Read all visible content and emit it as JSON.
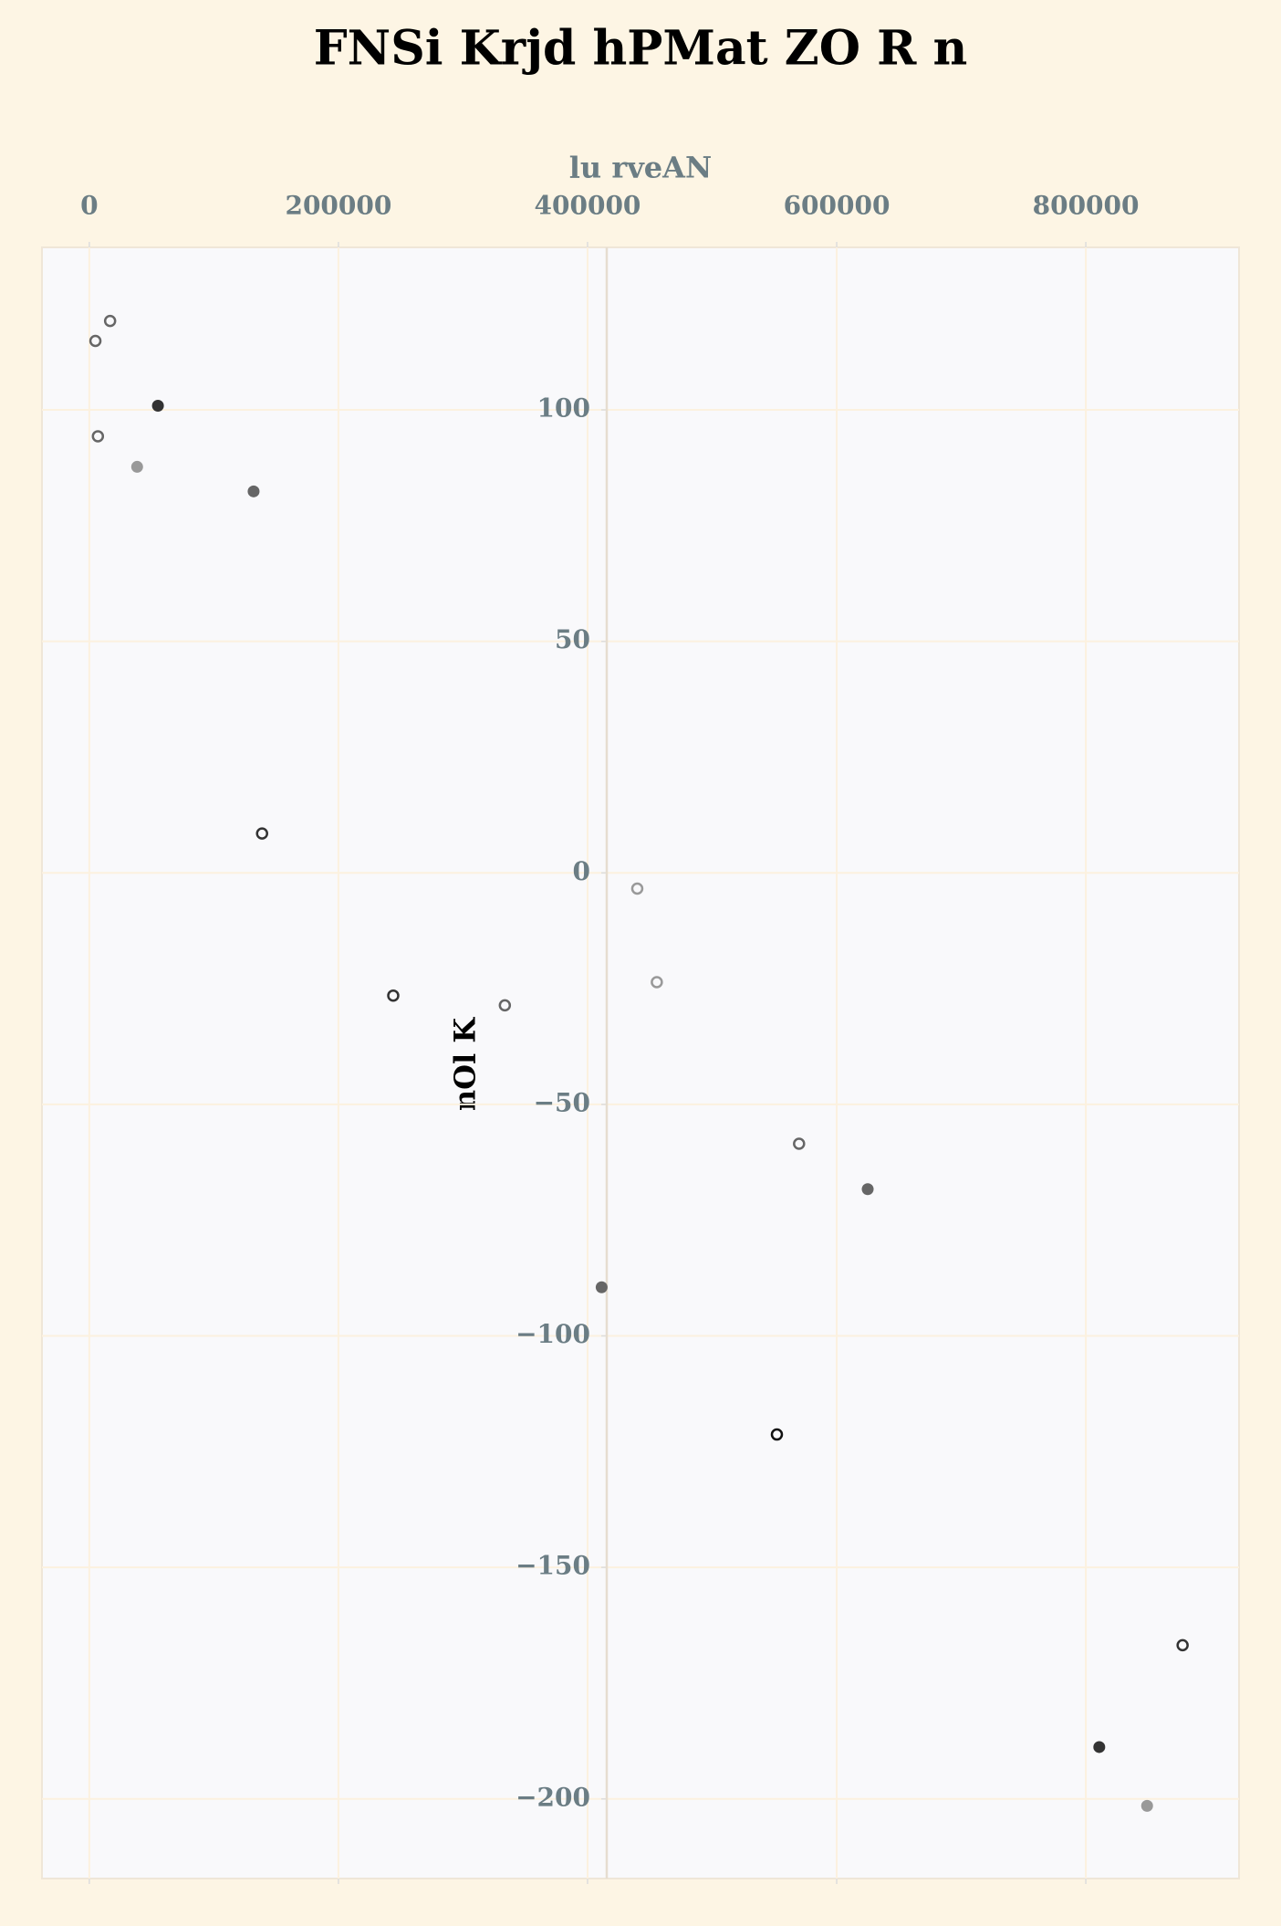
{
  "chart_data": {
    "type": "scatter",
    "title": "FNSi Krjd hPMat ZO R n",
    "x_label": "lu rveAN",
    "y_label": "nOl K",
    "x": [
      16700,
      4900,
      55100,
      6900,
      38400,
      131900,
      138700,
      244000,
      333600,
      439900,
      455600,
      569800,
      624900,
      411300,
      552000,
      877700,
      810800,
      849200
    ],
    "values": [
      119.2,
      114.9,
      100.9,
      94.3,
      87.7,
      82.4,
      8.5,
      -26.5,
      -28.6,
      -3.4,
      -23.6,
      -58.5,
      -68.3,
      -89.5,
      -121.3,
      -166.8,
      -188.8,
      -201.5
    ],
    "colors": [
      "#666666",
      "#666666",
      "#333333",
      "#666666",
      "#999999",
      "#666666",
      "#333333",
      "#333333",
      "#666666",
      "#999999",
      "#999999",
      "#666666",
      "#666666",
      "#666666",
      "#111111",
      "#333333",
      "#333333",
      "#999999"
    ],
    "hollow": [
      true,
      true,
      false,
      true,
      false,
      false,
      true,
      true,
      true,
      true,
      true,
      true,
      false,
      false,
      true,
      true,
      false,
      false
    ],
    "xlim": [
      -38000,
      923000
    ],
    "ylim": [
      -217.2,
      135.1
    ],
    "xticks": [
      0,
      200000,
      400000,
      600000,
      800000
    ],
    "yticks": [
      {
        "value": -200,
        "label": "−200"
      },
      {
        "value": -150,
        "label": "−150"
      },
      {
        "value": -100,
        "label": "−100"
      },
      {
        "value": -50,
        "label": "−50"
      },
      0,
      50,
      100
    ],
    "grid": true
  }
}
